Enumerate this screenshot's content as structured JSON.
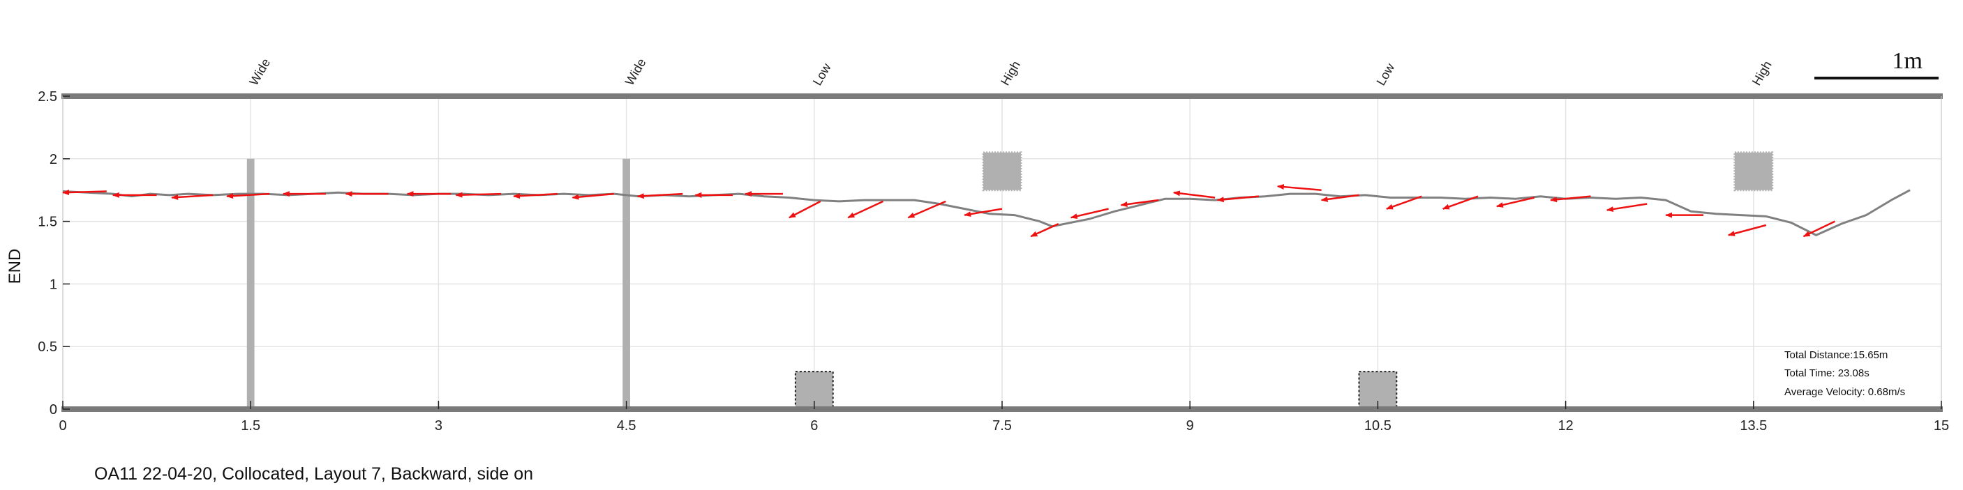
{
  "caption": "OA11 22-04-20, Collocated, Layout 7, Backward, side on",
  "scale_bar": {
    "label": "1m"
  },
  "stats": {
    "total_distance": "Total Distance:15.65m",
    "total_time": "Total Time: 23.08s",
    "average_velocity": "Average Velocity: 0.68m/s"
  },
  "colors": {
    "trajectory": "#808080",
    "arrows": "#ee1111",
    "obstacle": "#b0b0b0",
    "frame": "#7a7a7a",
    "grid": "#e4e4e4"
  },
  "chart_data": {
    "type": "line",
    "title": "",
    "xlabel": "",
    "ylabel": "END",
    "xlim": [
      0,
      15
    ],
    "ylim": [
      0,
      2.5
    ],
    "xticks": [
      0,
      1.5,
      3,
      4.5,
      6,
      7.5,
      9,
      10.5,
      12,
      13.5,
      15
    ],
    "xtick_labels": [
      "0",
      "1.5",
      "3",
      "4.5",
      "6",
      "7.5",
      "9",
      "10.5",
      "12",
      "13.5",
      "15"
    ],
    "yticks": [
      0,
      0.5,
      1,
      1.5,
      2,
      2.5
    ],
    "ytick_labels": [
      "0",
      "0.5",
      "1",
      "1.5",
      "2",
      "2.5"
    ],
    "grid": true,
    "obstacle_labels": [
      {
        "x": 1.5,
        "text": "Wide"
      },
      {
        "x": 4.5,
        "text": "Wide"
      },
      {
        "x": 6.0,
        "text": "Low"
      },
      {
        "x": 7.5,
        "text": "High"
      },
      {
        "x": 10.5,
        "text": "Low"
      },
      {
        "x": 13.5,
        "text": "High"
      }
    ],
    "obstacles": [
      {
        "type": "wide",
        "x": [
          1.47,
          1.53
        ],
        "y": [
          0,
          2.0
        ]
      },
      {
        "type": "wide",
        "x": [
          4.47,
          4.53
        ],
        "y": [
          0,
          2.0
        ]
      },
      {
        "type": "low",
        "x": [
          5.85,
          6.15
        ],
        "y": [
          0,
          0.3
        ]
      },
      {
        "type": "high",
        "x": [
          7.35,
          7.65
        ],
        "y": [
          1.75,
          2.05
        ]
      },
      {
        "type": "low",
        "x": [
          10.35,
          10.65
        ],
        "y": [
          0,
          0.3
        ]
      },
      {
        "type": "high",
        "x": [
          13.35,
          13.65
        ],
        "y": [
          1.75,
          2.05
        ]
      }
    ],
    "series": [
      {
        "x": [
          0,
          0.2,
          0.4,
          0.55,
          0.7,
          0.85,
          1.0,
          1.2,
          1.4,
          1.6,
          1.8,
          2.0,
          2.2,
          2.4,
          2.6,
          2.8,
          3.0,
          3.2,
          3.4,
          3.6,
          3.8,
          4.0,
          4.2,
          4.4,
          4.6,
          4.8,
          5.0,
          5.2,
          5.4,
          5.6,
          5.8,
          6.0,
          6.2,
          6.4,
          6.6,
          6.8,
          7.0,
          7.2,
          7.4,
          7.6,
          7.8,
          7.9,
          8.0,
          8.2,
          8.4,
          8.6,
          8.8,
          9.0,
          9.2,
          9.4,
          9.6,
          9.8,
          10.0,
          10.2,
          10.4,
          10.6,
          10.8,
          11.0,
          11.2,
          11.4,
          11.6,
          11.8,
          12.0,
          12.2,
          12.4,
          12.6,
          12.8,
          13.0,
          13.2,
          13.4,
          13.6,
          13.8,
          14.0,
          14.2,
          14.4,
          14.6,
          14.75
        ],
        "y": [
          1.74,
          1.73,
          1.72,
          1.7,
          1.72,
          1.71,
          1.72,
          1.71,
          1.72,
          1.72,
          1.71,
          1.72,
          1.73,
          1.72,
          1.72,
          1.71,
          1.72,
          1.72,
          1.71,
          1.72,
          1.71,
          1.72,
          1.71,
          1.72,
          1.7,
          1.71,
          1.7,
          1.71,
          1.72,
          1.7,
          1.69,
          1.67,
          1.66,
          1.67,
          1.67,
          1.67,
          1.64,
          1.6,
          1.56,
          1.55,
          1.5,
          1.46,
          1.48,
          1.52,
          1.58,
          1.63,
          1.68,
          1.68,
          1.67,
          1.69,
          1.7,
          1.72,
          1.72,
          1.7,
          1.71,
          1.69,
          1.69,
          1.69,
          1.68,
          1.69,
          1.68,
          1.7,
          1.68,
          1.69,
          1.68,
          1.69,
          1.67,
          1.58,
          1.56,
          1.55,
          1.54,
          1.49,
          1.39,
          1.48,
          1.55,
          1.67,
          1.75
        ]
      }
    ],
    "arrows": [
      {
        "x": 0.35,
        "y": 1.74,
        "dx": -0.35,
        "dy": -0.01
      },
      {
        "x": 0.75,
        "y": 1.71,
        "dx": -0.35,
        "dy": 0.0
      },
      {
        "x": 1.2,
        "y": 1.71,
        "dx": -0.33,
        "dy": -0.02
      },
      {
        "x": 1.65,
        "y": 1.72,
        "dx": -0.34,
        "dy": -0.02
      },
      {
        "x": 2.1,
        "y": 1.72,
        "dx": -0.34,
        "dy": 0.0
      },
      {
        "x": 2.6,
        "y": 1.72,
        "dx": -0.34,
        "dy": 0.0
      },
      {
        "x": 3.1,
        "y": 1.72,
        "dx": -0.35,
        "dy": 0.0
      },
      {
        "x": 3.5,
        "y": 1.72,
        "dx": -0.36,
        "dy": -0.01
      },
      {
        "x": 3.95,
        "y": 1.72,
        "dx": -0.35,
        "dy": -0.02
      },
      {
        "x": 4.4,
        "y": 1.72,
        "dx": -0.33,
        "dy": -0.03
      },
      {
        "x": 4.95,
        "y": 1.72,
        "dx": -0.36,
        "dy": -0.02
      },
      {
        "x": 5.35,
        "y": 1.71,
        "dx": -0.3,
        "dy": 0.0
      },
      {
        "x": 5.75,
        "y": 1.72,
        "dx": -0.3,
        "dy": 0.0
      },
      {
        "x": 6.05,
        "y": 1.66,
        "dx": -0.25,
        "dy": -0.13
      },
      {
        "x": 6.55,
        "y": 1.66,
        "dx": -0.28,
        "dy": -0.13
      },
      {
        "x": 7.05,
        "y": 1.66,
        "dx": -0.3,
        "dy": -0.13
      },
      {
        "x": 7.5,
        "y": 1.6,
        "dx": -0.3,
        "dy": -0.05
      },
      {
        "x": 7.95,
        "y": 1.48,
        "dx": -0.22,
        "dy": -0.1
      },
      {
        "x": 8.35,
        "y": 1.6,
        "dx": -0.3,
        "dy": -0.07
      },
      {
        "x": 8.75,
        "y": 1.67,
        "dx": -0.3,
        "dy": -0.04
      },
      {
        "x": 9.2,
        "y": 1.69,
        "dx": -0.33,
        "dy": 0.04
      },
      {
        "x": 9.55,
        "y": 1.7,
        "dx": -0.33,
        "dy": -0.03
      },
      {
        "x": 10.05,
        "y": 1.75,
        "dx": -0.35,
        "dy": 0.03
      },
      {
        "x": 10.35,
        "y": 1.71,
        "dx": -0.3,
        "dy": -0.04
      },
      {
        "x": 10.85,
        "y": 1.7,
        "dx": -0.28,
        "dy": -0.1
      },
      {
        "x": 11.3,
        "y": 1.7,
        "dx": -0.28,
        "dy": -0.1
      },
      {
        "x": 11.75,
        "y": 1.69,
        "dx": -0.3,
        "dy": -0.07
      },
      {
        "x": 12.2,
        "y": 1.7,
        "dx": -0.32,
        "dy": -0.03
      },
      {
        "x": 12.65,
        "y": 1.64,
        "dx": -0.32,
        "dy": -0.05
      },
      {
        "x": 13.1,
        "y": 1.55,
        "dx": -0.3,
        "dy": 0.0
      },
      {
        "x": 13.6,
        "y": 1.47,
        "dx": -0.3,
        "dy": -0.08
      },
      {
        "x": 14.15,
        "y": 1.5,
        "dx": -0.25,
        "dy": -0.12
      }
    ]
  }
}
